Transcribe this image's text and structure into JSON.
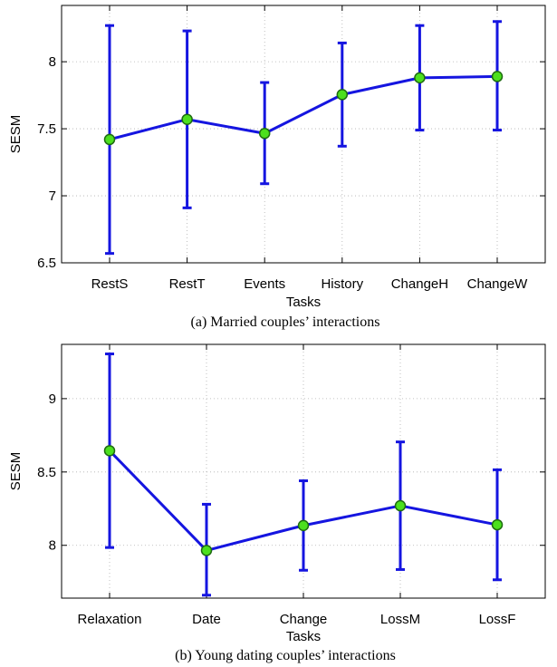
{
  "charts": [
    {
      "key": "a",
      "caption": "(a) Married couples’ interactions",
      "chart_data": {
        "type": "line",
        "xlabel": "Tasks",
        "ylabel": "SESM",
        "categories": [
          "RestS",
          "RestT",
          "Events",
          "History",
          "ChangeH",
          "ChangeW"
        ],
        "values": [
          7.42,
          7.57,
          7.465,
          7.755,
          7.88,
          7.89
        ],
        "error_low": [
          6.57,
          6.91,
          7.09,
          7.37,
          7.49,
          7.49
        ],
        "error_high": [
          8.27,
          8.23,
          7.845,
          8.14,
          8.27,
          8.3
        ],
        "ylim": [
          6.5,
          8.42
        ],
        "yticks": [
          6.5,
          7,
          7.5,
          8
        ],
        "ytick_labels": [
          "6.5",
          "7",
          "7.5",
          "8"
        ],
        "grid": true,
        "colors": {
          "line": "#1515e0",
          "marker_fill": "#4ce01e",
          "marker_edge": "#1e6b10"
        }
      }
    },
    {
      "key": "b",
      "caption": "(b) Young dating couples’ interactions",
      "chart_data": {
        "type": "line",
        "xlabel": "Tasks",
        "ylabel": "SESM",
        "categories": [
          "Relaxation",
          "Date",
          "Change",
          "LossM",
          "LossF"
        ],
        "values": [
          8.645,
          7.965,
          8.135,
          8.27,
          8.14
        ],
        "error_low": [
          7.985,
          7.66,
          7.83,
          7.835,
          7.765
        ],
        "error_high": [
          9.305,
          8.28,
          8.44,
          8.705,
          8.515
        ],
        "ylim": [
          7.64,
          9.37
        ],
        "yticks": [
          8,
          8.5,
          9
        ],
        "ytick_labels": [
          "8",
          "8.5",
          "9"
        ],
        "grid": true,
        "colors": {
          "line": "#1515e0",
          "marker_fill": "#4ce01e",
          "marker_edge": "#1e6b10"
        }
      }
    }
  ]
}
